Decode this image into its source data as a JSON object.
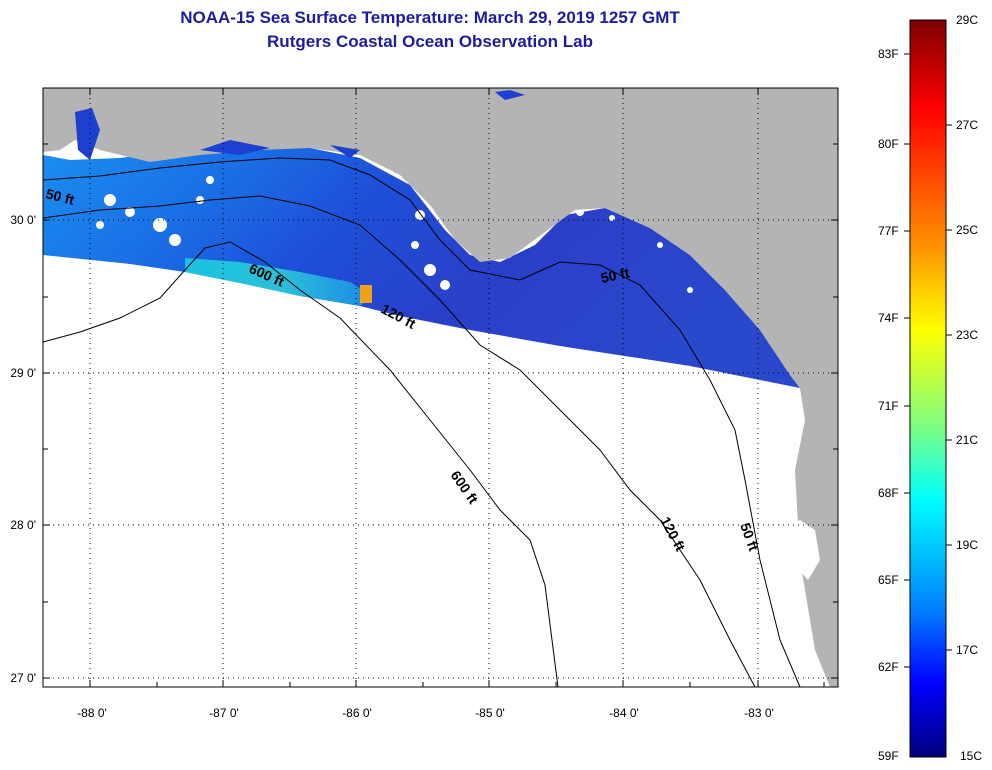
{
  "title": "NOAA-15 Sea Surface Temperature:  March 29, 2019 1257 GMT",
  "subtitle": "Rutgers Coastal Ocean Observation Lab",
  "latitude_labels": [
    "30 0'",
    "29 0'",
    "28 0'",
    "27 0'"
  ],
  "longitude_labels": [
    "-88 0'",
    "-87 0'",
    "-86 0'",
    "-85 0'",
    "-84 0'",
    "-83 0'"
  ],
  "map_extent": {
    "lon": [
      -88.35,
      -82.45
    ],
    "lat": [
      26.95,
      30.85
    ]
  },
  "contours": [
    {
      "label": "50 ft"
    },
    {
      "label": "120 ft"
    },
    {
      "label": "600 ft"
    },
    {
      "label": "600 ft"
    },
    {
      "label": "50 ft"
    },
    {
      "label": "120 ft"
    },
    {
      "label": "50 ft"
    }
  ],
  "colorbar": {
    "fahrenheit_labels": [
      "83F",
      "80F",
      "77F",
      "74F",
      "71F",
      "68F",
      "65F",
      "62F",
      "59F"
    ],
    "celsius_labels": [
      "29C",
      "27C",
      "25C",
      "23C",
      "21C",
      "19C",
      "17C",
      "15C"
    ],
    "range_celsius": [
      15,
      29
    ]
  },
  "colors": {
    "land": "#b4b4b4",
    "no_data_ocean": "#ffffff",
    "title": "#1c1c9c",
    "sst_shelf": "#1e46d8",
    "sst_offshore": "#12a8e6"
  }
}
